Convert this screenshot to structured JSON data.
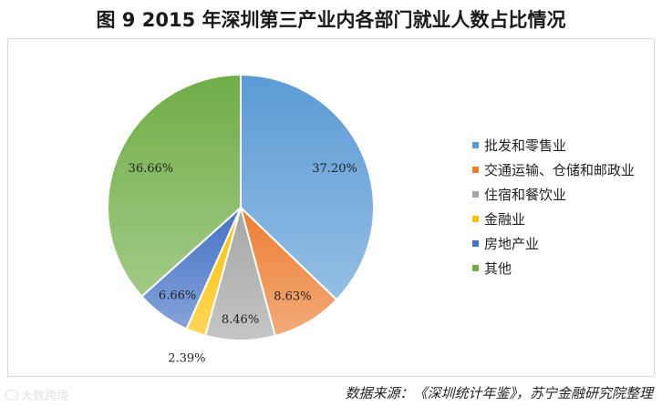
{
  "title": "图 9 2015 年深圳第三产业内各部门就业人数占比情况",
  "source": "数据来源：《深圳统计年鉴》，苏宁金融研究院整理",
  "watermark": "大数跨境",
  "chart_data": {
    "type": "pie",
    "title": "图 9 2015 年深圳第三产业内各部门就业人数占比情况",
    "legend_position": "right",
    "labels": [
      "批发和零售业",
      "交通运输、仓储和邮政业",
      "住宿和餐饮业",
      "金融业",
      "房地产业",
      "其他"
    ],
    "values": [
      37.2,
      8.63,
      8.46,
      2.39,
      6.66,
      36.66
    ],
    "value_labels": [
      "37.20%",
      "8.63%",
      "8.46%",
      "2.39%",
      "6.66%",
      "36.66%"
    ],
    "colors": [
      "#5b9bd5",
      "#ed7d31",
      "#a5a5a5",
      "#ffc000",
      "#4472c4",
      "#70ad47"
    ]
  }
}
